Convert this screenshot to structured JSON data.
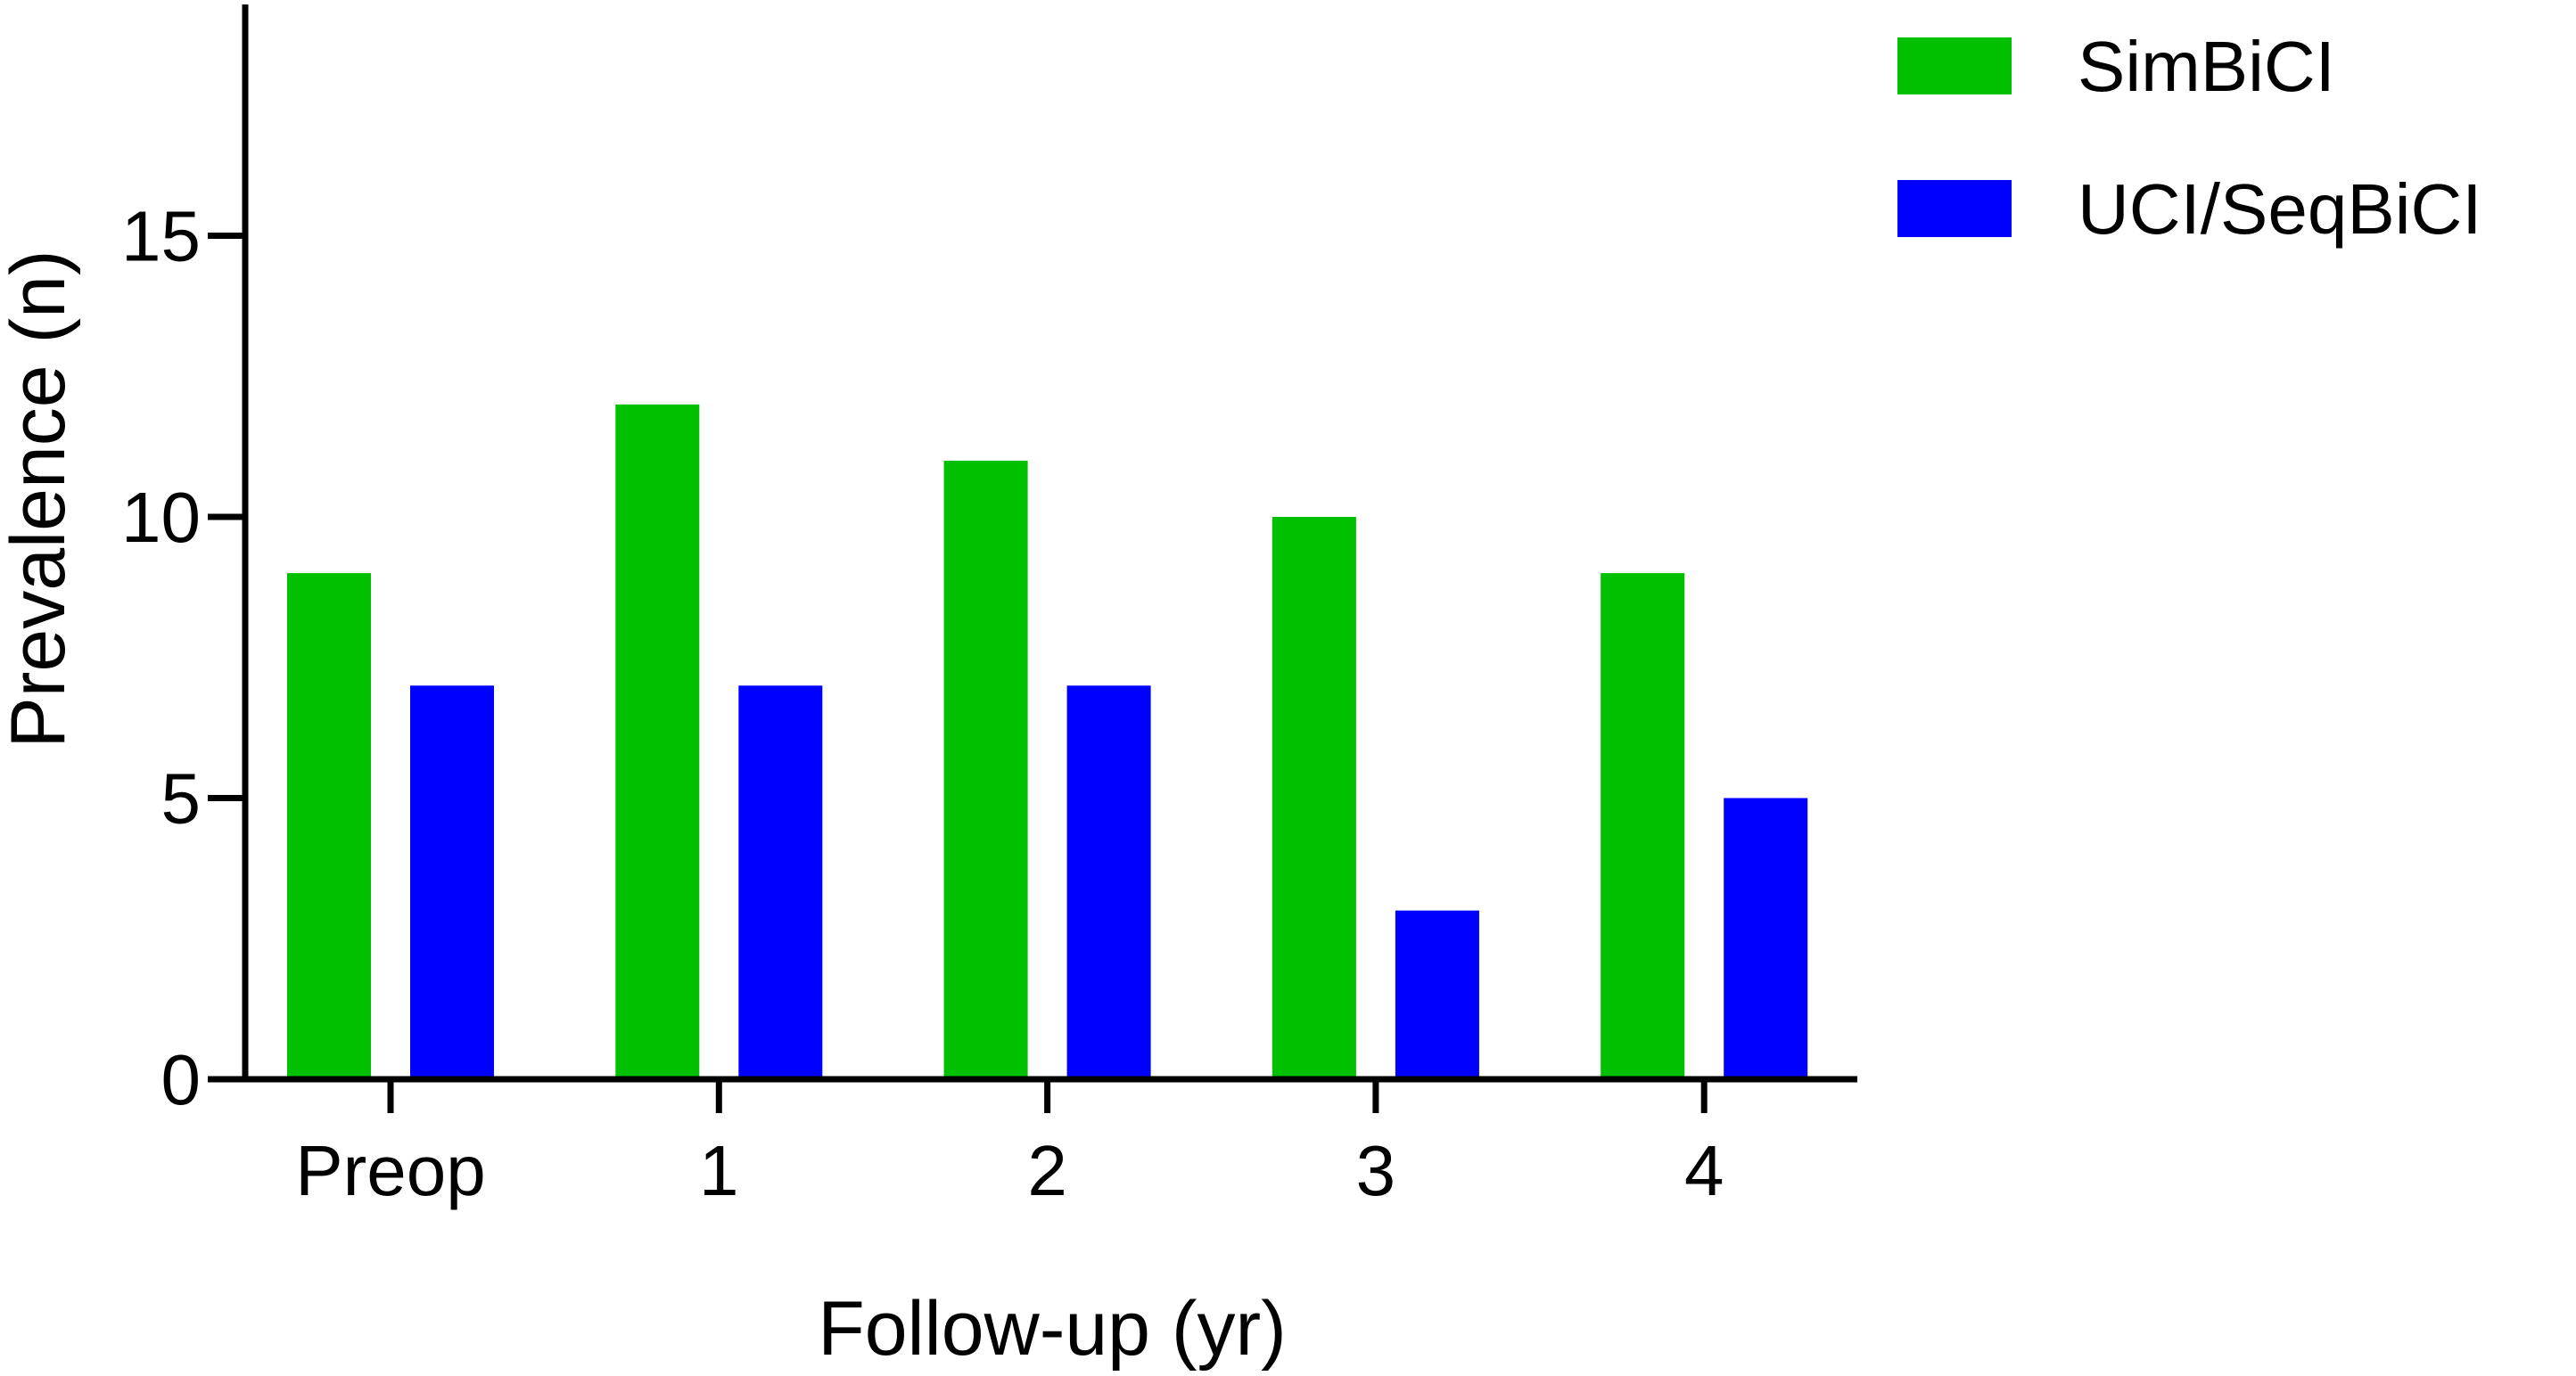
{
  "chart_data": {
    "type": "bar",
    "categories": [
      "Preop",
      "1",
      "2",
      "3",
      "4"
    ],
    "series": [
      {
        "name": "SimBiCI",
        "color": "#00c000",
        "values": [
          9,
          12,
          11,
          10,
          9
        ]
      },
      {
        "name": "UCI/SeqBiCI",
        "color": "#0000ff",
        "values": [
          7,
          7,
          7,
          3,
          5
        ]
      }
    ],
    "title": "",
    "xlabel": "Follow-up (yr)",
    "ylabel": "Prevalence (n)",
    "ylim": [
      0,
      19
    ],
    "yticks": [
      0,
      5,
      10,
      15
    ],
    "grid": false,
    "legend_position": "top-right"
  }
}
